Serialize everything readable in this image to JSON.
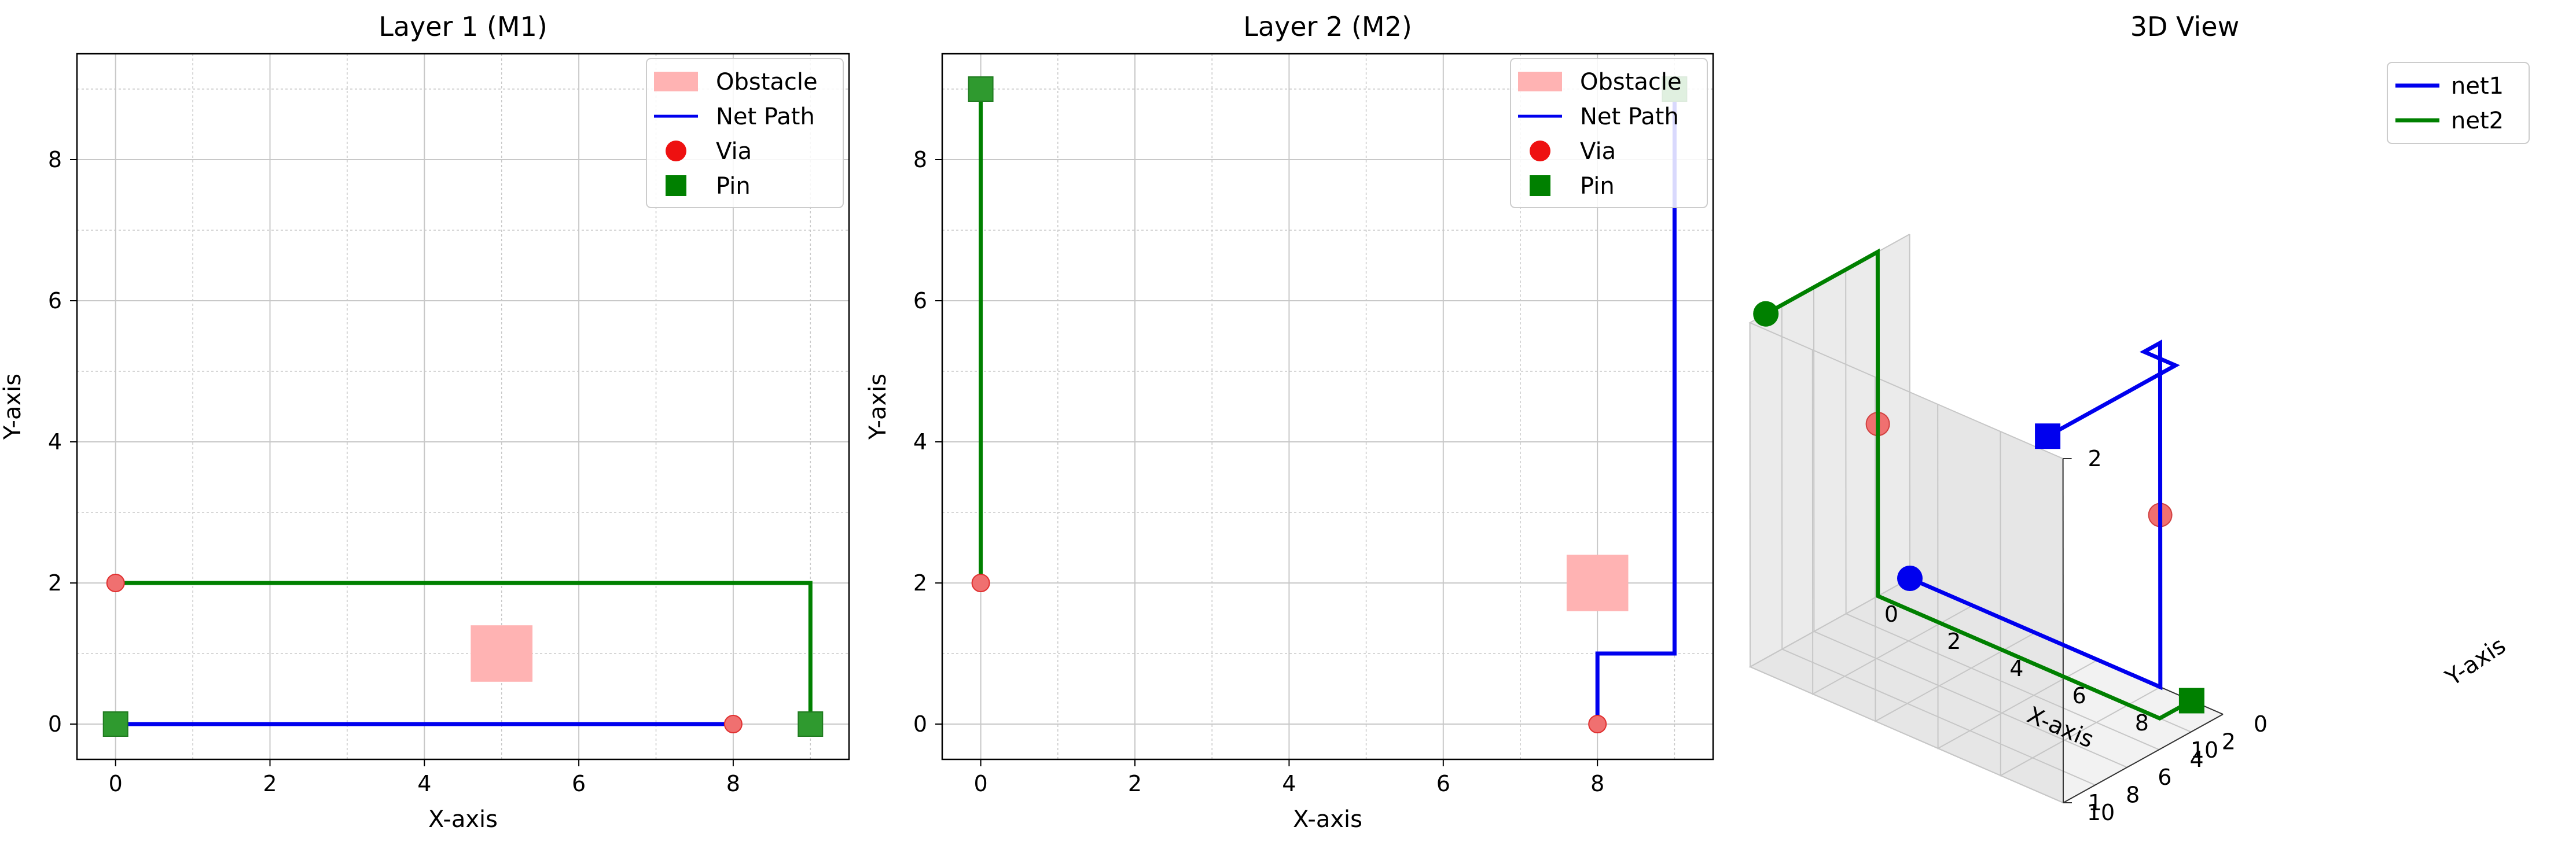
{
  "figure": {
    "panels": [
      {
        "title": "Layer 1 (M1)",
        "xlabel": "X-axis",
        "ylabel": "Y-axis",
        "xlim": [
          -0.5,
          9.5
        ],
        "ylim": [
          -0.5,
          9.5
        ],
        "xticks": [
          0,
          2,
          4,
          6,
          8
        ],
        "yticks": [
          0,
          2,
          4,
          6,
          8
        ],
        "grid": true,
        "legend": {
          "placement": "top-right",
          "entries": [
            "Obstacle",
            "Net Path",
            "Via",
            "Pin"
          ]
        }
      },
      {
        "title": "Layer 2 (M2)",
        "xlabel": "X-axis",
        "ylabel": "Y-axis",
        "xlim": [
          -0.5,
          9.5
        ],
        "ylim": [
          -0.5,
          9.5
        ],
        "xticks": [
          0,
          2,
          4,
          6,
          8
        ],
        "yticks": [
          0,
          2,
          4,
          6,
          8
        ],
        "grid": true,
        "legend": {
          "placement": "top-right",
          "entries": [
            "Obstacle",
            "Net Path",
            "Via",
            "Pin"
          ]
        }
      },
      {
        "title": "3D View",
        "xlabel": "X-axis",
        "ylabel": "Y-axis",
        "xticks": [
          0,
          2,
          4,
          6,
          8,
          10
        ],
        "yticks": [
          0,
          2,
          4,
          6,
          8,
          10
        ],
        "zticks": [
          1,
          2
        ],
        "legend": {
          "placement": "top-right",
          "entries": [
            "net1",
            "net2"
          ]
        }
      }
    ]
  },
  "colors": {
    "obstacle": "#ffb3b3",
    "net1": "#0000ee",
    "net2": "#008000",
    "via": "#f07070",
    "pin": "#2f9a2f",
    "grid": "#c8c8c8"
  },
  "chart_data": [
    {
      "type": "line",
      "title": "Layer 1 (M1)",
      "xlabel": "X-axis",
      "ylabel": "Y-axis",
      "xlim": [
        -0.5,
        9.5
      ],
      "ylim": [
        -0.5,
        9.5
      ],
      "grid": true,
      "legend": "top-right",
      "obstacles": [
        {
          "x0": 4.6,
          "x1": 5.4,
          "y0": 0.6,
          "y1": 1.4
        }
      ],
      "series": [
        {
          "net": "net1",
          "points": [
            [
              0,
              0
            ],
            [
              8,
              0
            ]
          ]
        },
        {
          "net": "net2",
          "points": [
            [
              0,
              2
            ],
            [
              9,
              2
            ],
            [
              9,
              0
            ]
          ]
        }
      ],
      "vias": [
        [
          0,
          2
        ],
        [
          8,
          0
        ]
      ],
      "pins": [
        [
          0,
          0
        ],
        [
          9,
          0
        ]
      ]
    },
    {
      "type": "line",
      "title": "Layer 2 (M2)",
      "xlabel": "X-axis",
      "ylabel": "Y-axis",
      "xlim": [
        -0.5,
        9.5
      ],
      "ylim": [
        -0.5,
        9.5
      ],
      "grid": true,
      "legend": "top-right",
      "obstacles": [
        {
          "x0": 7.6,
          "x1": 8.4,
          "y0": 1.6,
          "y1": 2.4
        }
      ],
      "series": [
        {
          "net": "net1",
          "points": [
            [
              8,
              0
            ],
            [
              8,
              1
            ],
            [
              9,
              1
            ],
            [
              9,
              9
            ]
          ]
        },
        {
          "net": "net2",
          "points": [
            [
              0,
              2
            ],
            [
              0,
              9
            ]
          ]
        }
      ],
      "vias": [
        [
          0,
          2
        ],
        [
          8,
          0
        ]
      ],
      "pins": [
        [
          0,
          9
        ],
        [
          9,
          9
        ]
      ]
    },
    {
      "type": "line3d",
      "title": "3D View",
      "xlabel": "X-axis",
      "ylabel": "Y-axis",
      "xlim": [
        0,
        10
      ],
      "ylim": [
        0,
        10
      ],
      "zlim": [
        1,
        2
      ],
      "legend": "top-right",
      "series": [
        {
          "name": "net1",
          "points": [
            [
              0,
              0,
              1
            ],
            [
              8,
              0,
              1
            ],
            [
              8,
              0,
              2
            ],
            [
              8,
              1,
              2
            ],
            [
              9,
              1,
              2
            ],
            [
              9,
              9,
              2
            ]
          ]
        },
        {
          "name": "net2",
          "points": [
            [
              9,
              0,
              1
            ],
            [
              9,
              2,
              1
            ],
            [
              0,
              2,
              1
            ],
            [
              0,
              2,
              2
            ],
            [
              0,
              9,
              2
            ]
          ]
        }
      ],
      "start_markers": [
        {
          "net": "net1",
          "at": [
            0,
            0,
            1
          ]
        },
        {
          "net": "net2",
          "at": [
            0,
            9,
            2
          ]
        }
      ],
      "end_markers": [
        {
          "net": "net1",
          "at": [
            9,
            9,
            2
          ]
        },
        {
          "net": "net2",
          "at": [
            9,
            0,
            1
          ]
        }
      ],
      "vias": [
        [
          8,
          0,
          1.5
        ],
        [
          0,
          2,
          1.5
        ]
      ]
    }
  ]
}
